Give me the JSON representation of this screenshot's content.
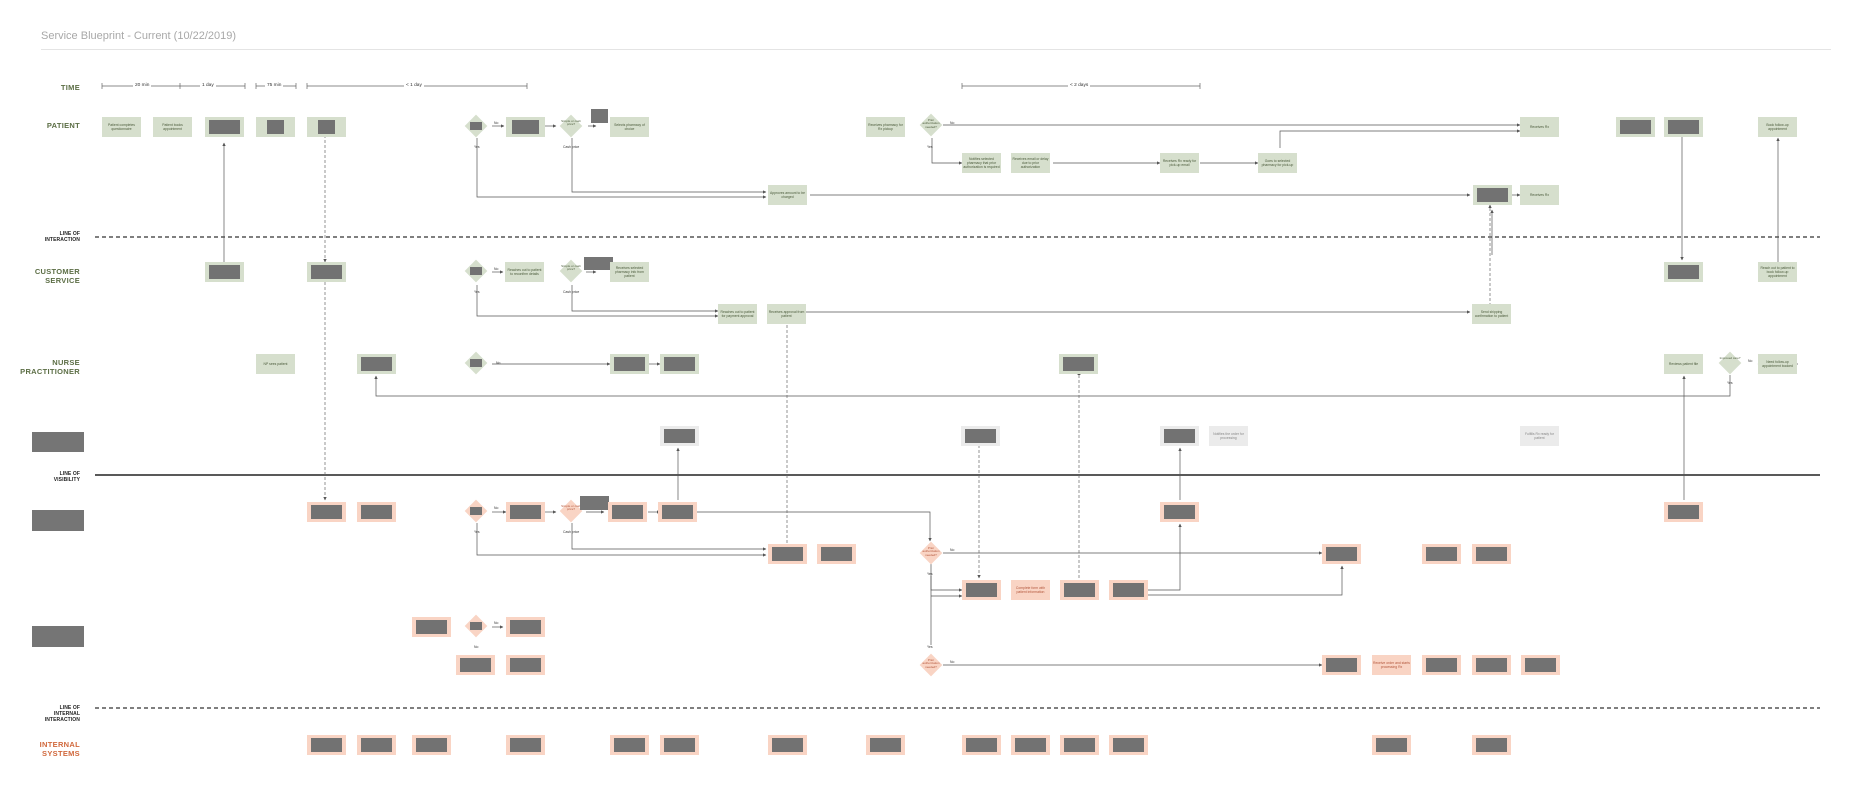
{
  "title": "Service Blueprint - Current (10/22/2019)",
  "lanes": {
    "time": "TIME",
    "patient": "PATIENT",
    "line_interaction": [
      "LINE OF",
      "INTERACTION"
    ],
    "customer_service": [
      "CUSTOMER",
      "SERVICE"
    ],
    "nurse": [
      "NURSE",
      "PRACTITIONER"
    ],
    "line_visibility": [
      "LINE OF",
      "VISIBILITY"
    ],
    "line_internal": [
      "LINE OF",
      "INTERNAL",
      "INTERACTION"
    ],
    "internal_systems": [
      "INTERNAL",
      "SYSTEMS"
    ]
  },
  "timeline": {
    "t1": "20 min",
    "t2": "1 day",
    "t3": "75 min",
    "t4": "< 1 day",
    "t5": "< 2 days"
  },
  "labels": {
    "yes": "Yes",
    "no": "No",
    "cash_price": "Cash price"
  },
  "nodes": {
    "p1": "Patient completes questionnaire",
    "p2": "Patient books appointment",
    "p_simple": "Simple or cash price?",
    "p_select": "Selects pharmacy of choice",
    "p_rcv_pharm": "Receives pharmacy for Rx pickup",
    "p_prior": "Prior authorization needed?",
    "p_notify": "Notifies selected pharmacy that prior authorization is required",
    "p_informed": "Receives email or delay due to prior authorization",
    "p_ready": "Receives Rx ready for pick-up email",
    "p_goes": "Goes to selected pharmacy for pick-up",
    "p_rx1": "Receives Rx",
    "p_approves": "Approves amount to be charged",
    "p_rx2": "Receives Rx",
    "p_book": "Book follow-up appointment",
    "cs_reaches": "Reaches out to patient to reconfirm details",
    "cs_simple": "Simple or cash price?",
    "cs_receives": "Receives selected pharmacy info from patient",
    "cs_out": "Reaches out to patient for payment approval",
    "cs_approval": "Receives approval from patient",
    "cs_send": "Send shipping confirmation to patient",
    "cs_followup": "Reach out to patient to book follow-up appointment",
    "np_sees": "NP sees patient",
    "np_review": "Reviews patient file",
    "np_improve": "Improved care?",
    "np_need": "Need follow-up appointment booked",
    "g_notif1": "Notifies the order for processing",
    "g_notif2": "Fulfills Rx ready for patient",
    "io_simple": "Simple or cash price?",
    "io_prior1": "Prior authorization needed?",
    "io_prior2": "Prior authorization needed?",
    "io_complete": "Complete form with patient information",
    "io_receive": "Receive order and starts processing Rx"
  }
}
